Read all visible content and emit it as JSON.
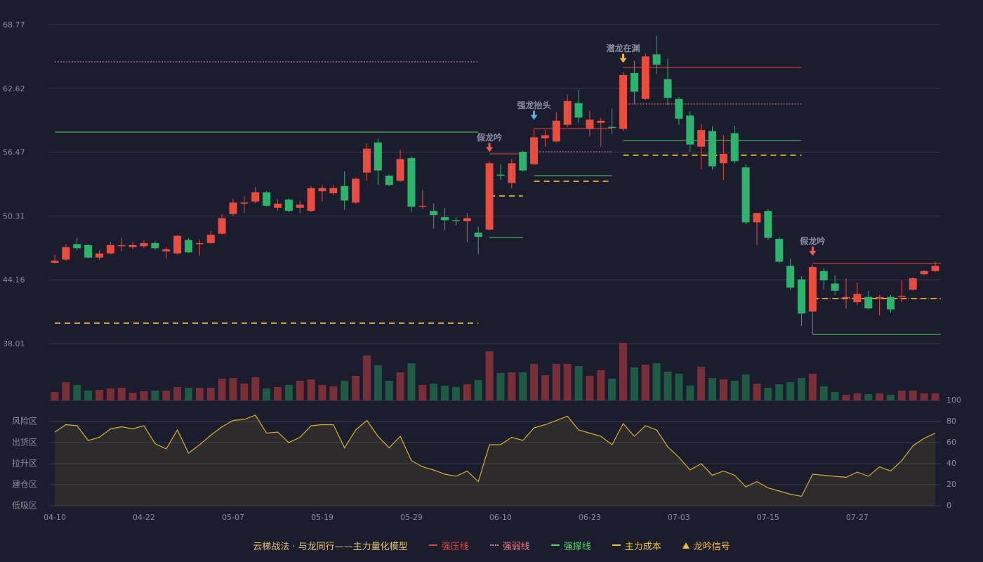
{
  "chart_data": [
    {
      "type": "candlestick",
      "categories": [
        "04-10",
        null,
        null,
        null,
        null,
        null,
        null,
        null,
        "04-22",
        null,
        null,
        null,
        null,
        null,
        null,
        null,
        "05-07",
        null,
        null,
        null,
        null,
        null,
        null,
        null,
        "05-19",
        null,
        null,
        null,
        null,
        null,
        null,
        null,
        "05-29",
        null,
        null,
        null,
        null,
        null,
        null,
        null,
        "06-10",
        null,
        null,
        null,
        null,
        null,
        null,
        null,
        "06-23",
        null,
        null,
        null,
        null,
        null,
        null,
        null,
        "07-03",
        null,
        null,
        null,
        null,
        null,
        null,
        null,
        "07-15",
        null,
        null,
        null,
        null,
        null,
        null,
        null,
        "07-27",
        null,
        null,
        null,
        null,
        null,
        null,
        null
      ],
      "open": [
        45.8,
        46.1,
        47.6,
        47.5,
        46.3,
        46.7,
        47.4,
        47.3,
        47.4,
        47.7,
        46.9,
        46.7,
        48.0,
        47.6,
        47.7,
        48.6,
        50.5,
        51.5,
        51.7,
        52.6,
        51.1,
        51.9,
        51.1,
        50.8,
        52.7,
        52.5,
        53.2,
        51.6,
        54.5,
        57.4,
        54.2,
        53.7,
        55.9,
        51.2,
        50.8,
        50.2,
        49.9,
        49.8,
        48.7,
        49.0,
        54.3,
        53.5,
        56.5,
        55.3,
        57.8,
        57.5,
        59.1,
        61.2,
        58.7,
        59.3,
        58.9,
        58.7,
        64.1,
        61.6,
        65.9,
        63.5,
        61.6,
        60.0,
        57.0,
        58.5,
        55.4,
        58.3,
        55.0,
        49.7,
        50.8,
        48.1,
        45.5,
        44.2,
        41.1,
        45.0,
        43.8,
        42.4,
        42.0,
        42.5,
        42.4,
        42.5,
        42.5,
        43.2,
        44.7,
        45.0
      ],
      "high": [
        46.6,
        47.6,
        48.2,
        47.6,
        47.0,
        47.8,
        48.2,
        47.8,
        48.0,
        47.9,
        47.3,
        48.5,
        48.2,
        48.0,
        48.9,
        50.5,
        52.0,
        52.2,
        53.1,
        52.7,
        51.9,
        52.0,
        51.8,
        53.2,
        53.3,
        53.3,
        54.6,
        54.0,
        57.3,
        57.8,
        54.3,
        56.7,
        56.1,
        52.8,
        51.5,
        51.1,
        50.2,
        50.6,
        49.3,
        55.6,
        55.3,
        55.8,
        56.6,
        58.7,
        58.6,
        60.3,
        62.0,
        62.5,
        60.5,
        59.8,
        60.7,
        64.2,
        65.3,
        66.0,
        67.7,
        65.5,
        61.8,
        60.4,
        59.2,
        59.0,
        58.1,
        59.0,
        55.3,
        50.6,
        51.0,
        48.3,
        46.2,
        44.5,
        45.6,
        45.3,
        44.6,
        44.3,
        43.9,
        43.1,
        42.7,
        42.7,
        44.1,
        44.4,
        45.1,
        45.9
      ],
      "low": [
        45.7,
        46.0,
        47.0,
        46.2,
        46.1,
        46.6,
        46.9,
        47.1,
        47.2,
        47.0,
        46.2,
        46.6,
        46.7,
        46.5,
        47.6,
        48.5,
        50.3,
        50.6,
        51.5,
        51.2,
        50.8,
        50.7,
        50.6,
        50.7,
        51.7,
        52.3,
        50.9,
        51.5,
        53.7,
        53.3,
        53.2,
        53.6,
        50.7,
        51.0,
        49.1,
        48.9,
        49.4,
        47.8,
        46.6,
        48.9,
        53.8,
        53.0,
        54.6,
        55.2,
        57.0,
        57.4,
        58.9,
        59.3,
        58.0,
        57.0,
        58.2,
        58.5,
        61.1,
        61.5,
        64.0,
        61.0,
        59.1,
        56.5,
        54.8,
        54.8,
        53.8,
        55.4,
        49.5,
        47.5,
        48.0,
        45.7,
        43.2,
        39.7,
        38.9,
        43.2,
        42.7,
        41.4,
        41.7,
        41.3,
        40.7,
        41.0,
        42.0,
        43.1,
        44.6,
        44.9
      ],
      "close": [
        46.0,
        47.3,
        47.2,
        46.3,
        46.7,
        47.5,
        47.5,
        47.5,
        47.7,
        47.2,
        47.1,
        48.4,
        46.8,
        47.7,
        48.5,
        50.1,
        51.6,
        51.6,
        52.6,
        51.3,
        51.5,
        50.8,
        51.4,
        53.0,
        53.0,
        53.0,
        51.8,
        53.9,
        56.8,
        54.7,
        53.3,
        55.8,
        51.2,
        51.3,
        50.4,
        49.9,
        49.8,
        50.1,
        48.3,
        55.4,
        54.2,
        55.4,
        54.7,
        57.9,
        58.1,
        59.5,
        61.4,
        59.8,
        59.6,
        59.5,
        58.8,
        63.9,
        62.3,
        65.7,
        64.9,
        61.7,
        59.7,
        57.2,
        58.6,
        55.1,
        56.3,
        55.6,
        49.7,
        50.6,
        48.2,
        45.9,
        43.4,
        40.9,
        45.4,
        44.1,
        43.1,
        42.5,
        42.8,
        41.4,
        42.5,
        41.3,
        42.6,
        44.3,
        45.0,
        45.5
      ],
      "up_color": "#ec4c3e",
      "down_color": "#2db46c",
      "ylim": [
        38.01,
        68.77
      ],
      "yticks": [
        38.01,
        44.16,
        50.31,
        56.47,
        62.62,
        68.77
      ],
      "grid": true,
      "legend_title": "云梯战法 · 与龙同行——主力量化模型",
      "series": [
        {
          "name": "强压线",
          "color": "#e8433d",
          "style": "solid",
          "segments": [
            {
              "start": 39,
              "end": 42,
              "value": 56.3
            },
            {
              "start": 43,
              "end": 50,
              "value": 58.74
            },
            {
              "start": 51,
              "end": 67,
              "value": 64.64
            },
            {
              "start": 68,
              "end": 79,
              "value": 45.73
            }
          ]
        },
        {
          "name": "强弱线",
          "color": "#f07a8a",
          "style": "dotted",
          "segments": [
            {
              "start": 0,
              "end": 38,
              "value": 65.18
            },
            {
              "start": 43,
              "end": 50,
              "value": 56.51
            },
            {
              "start": 51,
              "end": 67,
              "value": 61.11
            },
            {
              "start": 68,
              "end": 79,
              "value": 42.35
            }
          ]
        },
        {
          "name": "强撑线",
          "color": "#4cd964",
          "style": "solid",
          "segments": [
            {
              "start": 0,
              "end": 38,
              "value": 58.4
            },
            {
              "start": 39,
              "end": 42,
              "value": 48.24
            },
            {
              "start": 43,
              "end": 50,
              "value": 54.2
            },
            {
              "start": 51,
              "end": 67,
              "value": 57.59
            },
            {
              "start": 68,
              "end": 79,
              "value": 38.89
            }
          ]
        },
        {
          "name": "主力成本",
          "color": "#f5c518",
          "style": "dashed",
          "segments": [
            {
              "start": 0,
              "end": 38,
              "value": 39.97
            },
            {
              "start": 39,
              "end": 42,
              "value": 52.24
            },
            {
              "start": 43,
              "end": 50,
              "value": 53.66
            },
            {
              "start": 51,
              "end": 67,
              "value": 56.17
            },
            {
              "start": 68,
              "end": 79,
              "value": 42.35
            }
          ]
        }
      ],
      "signals": {
        "name": "龙吟信号",
        "color": "#f5b83c",
        "items": [
          {
            "index": 39,
            "label": "假龙吟",
            "color": "#ef5a5a"
          },
          {
            "index": 43,
            "label": "强龙抬头",
            "color": "#4fb3f0"
          },
          {
            "index": 51,
            "label": "潜龙在渊",
            "color": "#f5b83c"
          },
          {
            "index": 68,
            "label": "假龙吟",
            "color": "#ef5a5a"
          }
        ]
      }
    },
    {
      "type": "bar",
      "values": [
        12,
        26,
        22,
        14,
        15,
        17,
        18,
        11,
        13,
        14,
        14,
        19,
        18,
        18,
        18,
        31,
        32,
        24,
        33,
        17,
        19,
        22,
        28,
        30,
        22,
        20,
        28,
        35,
        64,
        50,
        28,
        40,
        53,
        22,
        24,
        21,
        19,
        23,
        29,
        70,
        39,
        40,
        40,
        52,
        36,
        52,
        52,
        49,
        35,
        43,
        31,
        82,
        47,
        51,
        53,
        41,
        38,
        21,
        48,
        32,
        30,
        28,
        37,
        24,
        18,
        23,
        26,
        32,
        38,
        20,
        12,
        8,
        10,
        9,
        10,
        8,
        14,
        14,
        10,
        10
      ],
      "up_color": "#7a2f38",
      "down_color": "#1f5a45",
      "ylim": [
        0,
        82
      ]
    },
    {
      "type": "line",
      "values": [
        70,
        77,
        76,
        62,
        65,
        73,
        75,
        73,
        76,
        59,
        54,
        72,
        50,
        58,
        67,
        75,
        81,
        82,
        86,
        69,
        70,
        60,
        65,
        76,
        77,
        77,
        55,
        72,
        81,
        66,
        55,
        66,
        43,
        37,
        34,
        30,
        28,
        33,
        23,
        58,
        58,
        65,
        62,
        74,
        77,
        81,
        85,
        72,
        69,
        66,
        58,
        78,
        66,
        76,
        72,
        56,
        46,
        34,
        40,
        29,
        33,
        29,
        18,
        23,
        17,
        14,
        11,
        9,
        30,
        29,
        28,
        27,
        32,
        28,
        37,
        33,
        43,
        57,
        64,
        69
      ],
      "color": "#d9b22a",
      "ylim": [
        0,
        100
      ],
      "yticks": [
        0,
        20,
        40,
        60,
        80,
        100
      ],
      "tick_colors": [
        "#ef4444",
        "#ef4444",
        "#4a90e2",
        "#e040fb",
        "#f0a030",
        "#4cd964"
      ],
      "zones": [
        {
          "value": 80,
          "label": "风险区",
          "color": "#f0a030"
        },
        {
          "value": 60,
          "label": "出货区",
          "color": "#e040fb"
        },
        {
          "value": 40,
          "label": "拉升区",
          "color": "#4a90e2"
        },
        {
          "value": 20,
          "label": "建仓区",
          "color": "#ef4444"
        },
        {
          "value": 0,
          "label": "低吸区",
          "color": "#ef4444"
        }
      ]
    }
  ]
}
